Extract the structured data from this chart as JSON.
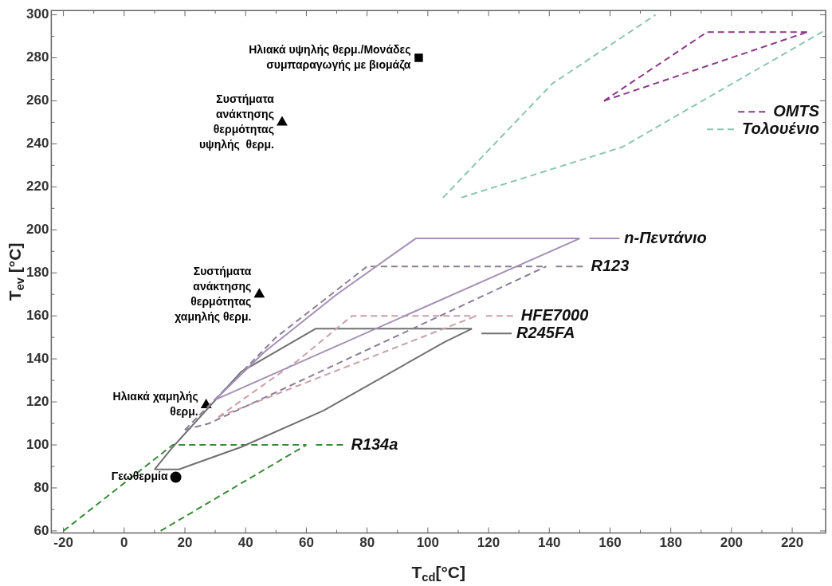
{
  "chart_data": {
    "type": "line",
    "xlabel": "T$_{cd}$[°C]",
    "ylabel": "T$_{ev}$ [°C]",
    "xlim": [
      -24,
      231
    ],
    "ylim": [
      59,
      302
    ],
    "xticks": [
      -20,
      0,
      20,
      40,
      60,
      80,
      100,
      120,
      140,
      160,
      180,
      200,
      220
    ],
    "yticks": [
      60,
      80,
      100,
      120,
      140,
      160,
      180,
      200,
      220,
      240,
      260,
      280,
      300
    ],
    "grid": false,
    "legend": "right",
    "series": [
      {
        "name": "OMTS",
        "color": "#8b3a8b",
        "line_style": "dashed",
        "marker": "none",
        "x": [
          158,
          192,
          225
        ],
        "values": [
          260,
          292,
          292
        ]
      },
      {
        "color": "#8b3a8b",
        "line_style": "dashed",
        "marker": "none",
        "x": [
          158,
          225
        ],
        "values": [
          260,
          292
        ]
      },
      {
        "color": "#8cc5b5",
        "line_style": "dashed",
        "marker": "none",
        "x": [
          105,
          141,
          175
        ],
        "values": [
          215,
          268,
          300
        ]
      },
      {
        "name": "Τολουένιο",
        "color": "#8cc5b5",
        "line_style": "dashed",
        "marker": "none",
        "x": [
          111,
          164,
          231
        ],
        "values": [
          215,
          238.5,
          293
        ]
      },
      {
        "name": "n-Πεντάνιο",
        "color": "#a58fb5",
        "line_style": "solid",
        "marker": "none",
        "x": [
          30,
          46,
          70,
          96,
          150
        ],
        "values": [
          121,
          143,
          170,
          196,
          196
        ]
      },
      {
        "color": "#a58fb5",
        "line_style": "solid",
        "marker": "none",
        "x": [
          30,
          150
        ],
        "values": [
          121,
          196
        ]
      },
      {
        "name": "R123",
        "color": "#8a7f95",
        "line_style": "dashed",
        "marker": "none",
        "x": [
          20,
          50,
          80,
          139
        ],
        "values": [
          107,
          150,
          183,
          183
        ]
      },
      {
        "color": "#8a7f95",
        "line_style": "dashed",
        "marker": "none",
        "x": [
          20,
          28,
          139
        ],
        "values": [
          107,
          110,
          183
        ]
      },
      {
        "name": "HFE7000",
        "color": "#c9a0a8",
        "line_style": "dashed",
        "marker": "none",
        "x": [
          31,
          57,
          75,
          116
        ],
        "values": [
          113,
          139,
          160,
          160
        ]
      },
      {
        "color": "#c9a0a8",
        "line_style": "dashed",
        "marker": "none",
        "x": [
          31,
          116
        ],
        "values": [
          113,
          160
        ]
      },
      {
        "name": "R245FA",
        "color": "#707070",
        "line_style": "solid",
        "marker": "none",
        "x": [
          10,
          16,
          38.5,
          63,
          114.5
        ],
        "values": [
          88.6,
          99,
          134,
          154,
          154
        ]
      },
      {
        "color": "#707070",
        "line_style": "solid",
        "marker": "none",
        "x": [
          10,
          18,
          38.5,
          65.7,
          105.7,
          114.5
        ],
        "values": [
          88.6,
          88.6,
          99,
          116,
          148,
          154
        ]
      },
      {
        "name": "R134a",
        "color": "#3a8a3a",
        "line_style": "dashed",
        "marker": "none",
        "x": [
          -20,
          16,
          60
        ],
        "values": [
          60,
          100,
          100
        ]
      },
      {
        "color": "#3a8a3a",
        "line_style": "dashed",
        "marker": "none",
        "x": [
          12,
          60
        ],
        "values": [
          60,
          100
        ]
      },
      {
        "name": "Ηλιακά υψηλής θερμ./Μονάδες\nσυμπαραγωγής με βιομάζα",
        "type": "scatter",
        "color": "#000000",
        "marker": "square",
        "x": [
          97
        ],
        "values": [
          280
        ]
      },
      {
        "name": "Συστήματα\nανάκτησης\nθερμότητας\nυψηλής  θερμ.",
        "type": "scatter",
        "color": "#000000",
        "marker": "triangle",
        "x": [
          52
        ],
        "values": [
          250
        ]
      },
      {
        "name": "Συστήματα\nανάκτησης\nθερμότητας\nχαμηλής θερμ.",
        "type": "scatter",
        "color": "#000000",
        "marker": "triangle",
        "x": [
          44.5
        ],
        "values": [
          170
        ]
      },
      {
        "name": "Ηλιακά χαμηλής\nθερμ.",
        "type": "scatter",
        "color": "#000000",
        "marker": "triangle",
        "x": [
          27
        ],
        "values": [
          118.5
        ]
      },
      {
        "name": "Γεωθερμία",
        "type": "scatter",
        "color": "#000000",
        "marker": "circle",
        "x": [
          17
        ],
        "values": [
          85
        ]
      }
    ]
  }
}
